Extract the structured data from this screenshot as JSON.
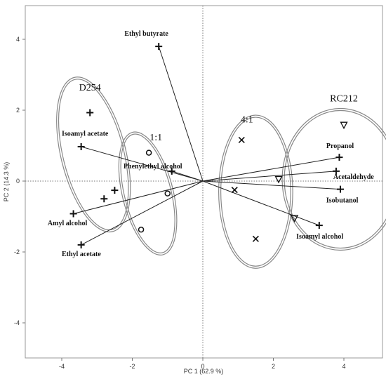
{
  "chart_data": {
    "type": "scatter",
    "xlabel": "PC 1  (62.9 %)",
    "ylabel": "PC 2  (14.3 %)",
    "xlim": [
      -5.0,
      5.2
    ],
    "ylim": [
      -5.5,
      5.0
    ],
    "x_ticks": [
      -4,
      -2,
      0,
      2,
      4
    ],
    "y_ticks": [
      -4,
      -2,
      0,
      2,
      4
    ],
    "reference_lines": {
      "x": 0,
      "y": 0,
      "style": "dotted"
    },
    "loadings": [
      {
        "name": "Ethyl butyrate",
        "x": -1.25,
        "y": 3.8
      },
      {
        "name": "Isoamyl acetate",
        "x": -3.45,
        "y": 0.97
      },
      {
        "name": "Phenylethyl alcohol",
        "x": -0.88,
        "y": 0.28
      },
      {
        "name": "Amyl alcohol",
        "x": -3.67,
        "y": -0.92
      },
      {
        "name": "Ethyl acetate",
        "x": -3.45,
        "y": -1.8
      },
      {
        "name": "Propanol",
        "x": 3.87,
        "y": 0.67
      },
      {
        "name": "Acetaldehyde",
        "x": 3.78,
        "y": 0.28
      },
      {
        "name": "Isobutanol",
        "x": 3.9,
        "y": -0.23
      },
      {
        "name": "Isoamyl alcohol",
        "x": 3.3,
        "y": -1.25
      }
    ],
    "series": [
      {
        "name": "D254",
        "marker": "plus",
        "points": [
          [
            -3.2,
            1.93
          ],
          [
            -2.5,
            -0.26
          ],
          [
            -2.8,
            -0.5
          ]
        ]
      },
      {
        "name": "1:1",
        "marker": "circle",
        "points": [
          [
            -1.53,
            0.8
          ],
          [
            -1.0,
            -0.35
          ],
          [
            -1.75,
            -1.37
          ]
        ]
      },
      {
        "name": "4:1",
        "marker": "cross",
        "points": [
          [
            1.1,
            1.16
          ],
          [
            0.9,
            -0.25
          ],
          [
            1.5,
            -1.63
          ]
        ]
      },
      {
        "name": "RC212",
        "marker": "triangle-down",
        "points": [
          [
            4.0,
            1.58
          ],
          [
            2.15,
            0.05
          ],
          [
            2.6,
            -1.05
          ]
        ]
      }
    ],
    "ellipses": [
      {
        "group": "D254",
        "cx": -3.1,
        "cy": 0.75,
        "rx": 0.92,
        "ry": 2.24,
        "angle_deg": -14
      },
      {
        "group": "1:1",
        "cx": -1.56,
        "cy": -0.35,
        "rx": 0.72,
        "ry": 1.78,
        "angle_deg": -14
      },
      {
        "group": "4:1",
        "cx": 1.5,
        "cy": -0.3,
        "rx": 1.05,
        "ry": 2.16,
        "angle_deg": 0
      },
      {
        "group": "RC212",
        "cx": 3.9,
        "cy": 0.05,
        "rx": 1.65,
        "ry": 2.0,
        "angle_deg": 0
      }
    ],
    "group_labels": [
      {
        "text": "D254",
        "x": -3.2,
        "y": 2.55
      },
      {
        "text": "1:1",
        "x": -1.33,
        "y": 1.15
      },
      {
        "text": "4:1",
        "x": 1.25,
        "y": 1.65
      },
      {
        "text": "RC212",
        "x": 4.0,
        "y": 2.25
      }
    ]
  }
}
